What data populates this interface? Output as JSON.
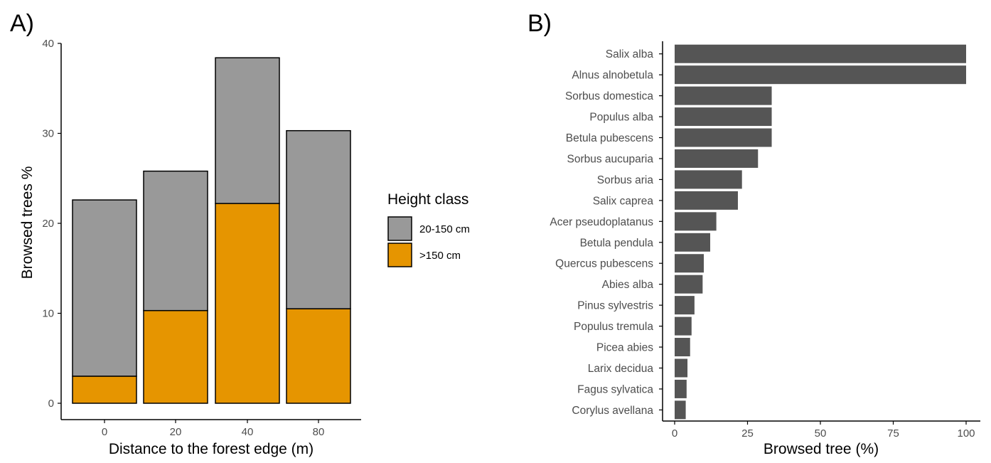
{
  "panel_labels": {
    "a": "A)",
    "b": "B)"
  },
  "legend": {
    "title": "Height class",
    "entries": [
      {
        "label": "20-150 cm",
        "color": "#999999"
      },
      {
        "label": ">150 cm",
        "color": "#E69500"
      }
    ]
  },
  "colors": {
    "gray_fill": "#999999",
    "orange_fill": "#E69500",
    "bar_dark": "#555555",
    "axis": "#000000"
  },
  "chart_data": [
    {
      "type": "bar",
      "stacked": true,
      "categories": [
        "0",
        "20",
        "40",
        "80"
      ],
      "series": [
        {
          "name": ">150 cm",
          "values": [
            3.0,
            10.3,
            22.2,
            10.5
          ]
        },
        {
          "name": "20-150 cm",
          "values": [
            19.6,
            15.5,
            16.2,
            19.8
          ]
        }
      ],
      "xlabel": "Distance to the forest edge (m)",
      "ylabel": "Browsed trees %",
      "ylim": [
        0,
        40
      ],
      "yticks": [
        "0",
        "10",
        "20",
        "30",
        "40"
      ],
      "grid": false,
      "legend": "right"
    },
    {
      "type": "bar",
      "orientation": "horizontal",
      "categories": [
        "Salix alba",
        "Alnus alnobetula",
        "Sorbus domestica",
        "Populus alba",
        "Betula pubescens",
        "Sorbus aucuparia",
        "Sorbus aria",
        "Salix caprea",
        "Acer pseudoplatanus",
        "Betula pendula",
        "Quercus pubescens",
        "Abies alba",
        "Pinus sylvestris",
        "Populus tremula",
        "Picea abies",
        "Larix decidua",
        "Fagus sylvatica",
        "Corylus avellana"
      ],
      "values": [
        100,
        100,
        33.3,
        33.3,
        33.3,
        28.6,
        23.1,
        21.7,
        14.3,
        12.2,
        10.0,
        9.6,
        6.8,
        5.8,
        5.3,
        4.4,
        4.1,
        3.8
      ],
      "xlabel": "Browsed tree (%)",
      "ylabel": "",
      "xlim": [
        -3,
        105
      ],
      "xticks": [
        "0",
        "25",
        "50",
        "75",
        "100"
      ],
      "grid": false
    }
  ]
}
